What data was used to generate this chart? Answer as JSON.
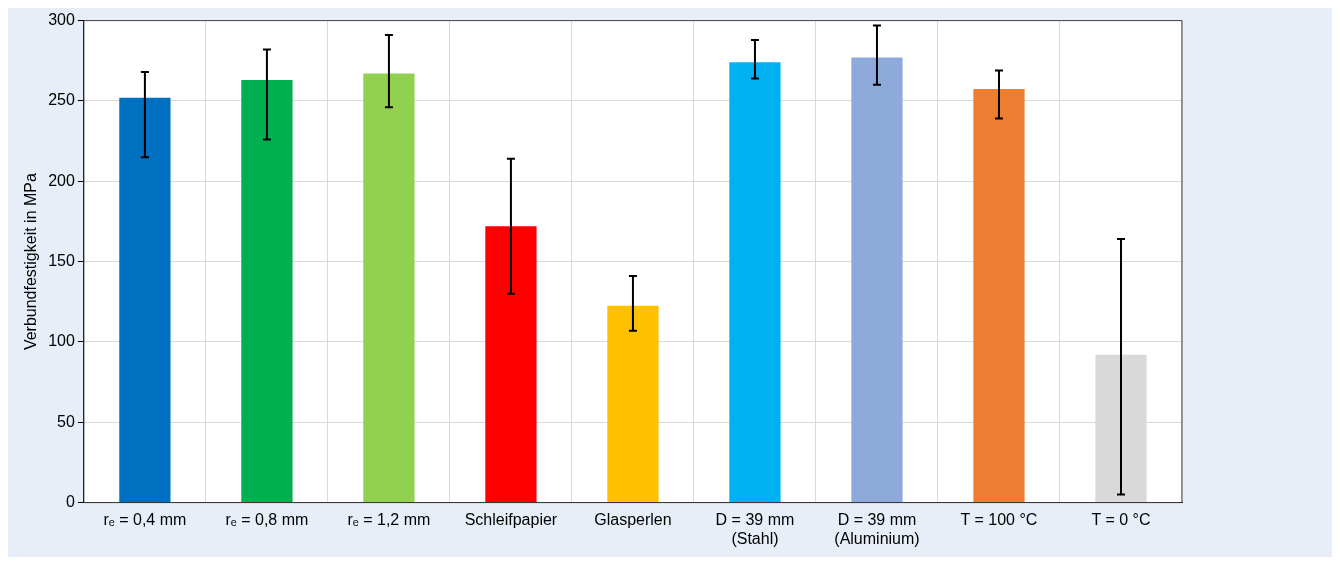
{
  "chart_data": {
    "type": "bar",
    "ylabel": "Verbundfestigkeit in MPa",
    "categories": [
      "rₑ = 0,4 mm",
      "rₑ = 0,8 mm",
      "rₑ = 1,2 mm",
      "Schleifpapier",
      "Glasperlen",
      "D = 39 mm\n(Stahl)",
      "D = 39 mm\n(Aluminium)",
      "T = 100 °C",
      "T = 0 °C"
    ],
    "values": [
      252,
      263,
      267,
      172,
      122.5,
      274,
      277,
      257.5,
      92
    ],
    "errors": [
      [
        215,
        268
      ],
      [
        226,
        282
      ],
      [
        246,
        291
      ],
      [
        130,
        214
      ],
      [
        107,
        141
      ],
      [
        264,
        288
      ],
      [
        260,
        297
      ],
      [
        239,
        269
      ],
      [
        5,
        164
      ]
    ],
    "colors": [
      "#0070c0",
      "#00b050",
      "#92d050",
      "#ff0000",
      "#ffc000",
      "#00b0f0",
      "#8eaadb",
      "#ed7d31",
      "#d9d9d9"
    ],
    "ylim": [
      0,
      300
    ],
    "yticks": [
      0,
      50,
      100,
      150,
      200,
      250,
      300
    ],
    "grid": true
  }
}
